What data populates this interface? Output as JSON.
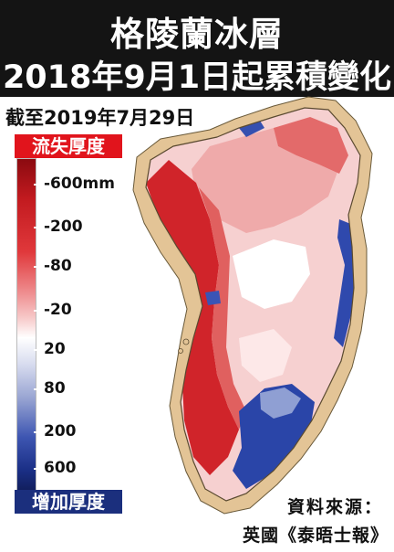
{
  "header": {
    "title_line1": "格陵蘭冰層",
    "title_line2": "2018年9月1日起累積變化"
  },
  "subtitle": "截至2019年7月29日",
  "legend": {
    "top_label": "流失厚度",
    "bottom_label": "增加厚度",
    "ticks": [
      {
        "label": "-600mm",
        "fraction": 0.08
      },
      {
        "label": "-200",
        "fraction": 0.21
      },
      {
        "label": "-80",
        "fraction": 0.33
      },
      {
        "label": "-20",
        "fraction": 0.46
      },
      {
        "label": "20",
        "fraction": 0.58
      },
      {
        "label": "80",
        "fraction": 0.7
      },
      {
        "label": "200",
        "fraction": 0.83
      },
      {
        "label": "600",
        "fraction": 0.94
      }
    ]
  },
  "map": {
    "region": "Greenland",
    "colors": {
      "land": "#e6c79a",
      "ice_loss_strong": "#c8181c",
      "ice_loss_light": "#f2b3b3",
      "neutral": "#ffffff",
      "ice_gain": "#2a45a8"
    }
  },
  "source": {
    "label": "資料來源：",
    "value": "英國《泰晤士報》"
  }
}
